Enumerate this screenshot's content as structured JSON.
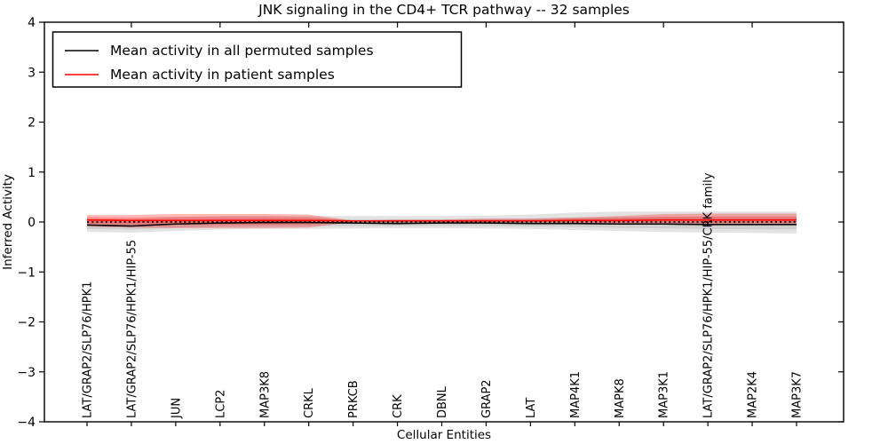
{
  "chart_data": {
    "type": "line",
    "title": "JNK signaling in the CD4+ TCR pathway -- 32 samples",
    "xlabel": "Cellular Entities",
    "ylabel": "Inferred Activity",
    "ylim": [
      -4,
      4
    ],
    "yticks": [
      4,
      3,
      2,
      1,
      0,
      -1,
      -2,
      -3,
      -4
    ],
    "ytick_labels": [
      "4",
      "3",
      "2",
      "1",
      "0",
      "−1",
      "−2",
      "−3",
      "−4"
    ],
    "grid": false,
    "legend_position": "upper left",
    "categories": [
      "LAT/GRAP2/SLP76/HPK1",
      "LAT/GRAP2/SLP76/HPK1/HIP-55",
      "JUN",
      "LCP2",
      "MAP3K8",
      "CRKL",
      "PRKCB",
      "CRK",
      "DBNL",
      "GRAP2",
      "LAT",
      "MAP4K1",
      "MAPK8",
      "MAP3K1",
      "LAT/GRAP2/SLP76/HPK1/HIP-55/CRK family",
      "MAP2K4",
      "MAP3K7"
    ],
    "series": [
      {
        "name": "Mean activity in all permuted samples",
        "color": "#000000",
        "style": "solid",
        "values": [
          -0.06,
          -0.08,
          -0.04,
          -0.02,
          -0.01,
          -0.01,
          -0.02,
          -0.03,
          -0.02,
          -0.02,
          -0.03,
          -0.03,
          -0.04,
          -0.04,
          -0.05,
          -0.05,
          -0.05
        ]
      },
      {
        "name": "Mean activity in patient samples",
        "color": "#ff0000",
        "style": "solid",
        "values": [
          0.04,
          0.03,
          0.03,
          0.03,
          0.03,
          0.03,
          0.02,
          0.02,
          0.02,
          0.02,
          0.02,
          0.03,
          0.03,
          0.04,
          0.04,
          0.04,
          0.04
        ]
      },
      {
        "name": "zero-baseline",
        "color": "#000000",
        "style": "dotted",
        "values": [
          0,
          0,
          0,
          0,
          0,
          0,
          0,
          0,
          0,
          0,
          0,
          0,
          0,
          0,
          0,
          0,
          0
        ]
      }
    ],
    "bands": [
      {
        "name": "permuted-samples-spread",
        "series": "Mean activity in all permuted samples",
        "color": "#000000",
        "opacity": 0.11,
        "upper": [
          0.07,
          0.06,
          0.1,
          0.12,
          0.13,
          0.12,
          0.12,
          0.12,
          0.12,
          0.13,
          0.15,
          0.19,
          0.21,
          0.21,
          0.21,
          0.21,
          0.21
        ],
        "lower": [
          -0.2,
          -0.21,
          -0.18,
          -0.15,
          -0.14,
          -0.14,
          -0.13,
          -0.12,
          -0.12,
          -0.13,
          -0.14,
          -0.16,
          -0.18,
          -0.2,
          -0.21,
          -0.22,
          -0.23
        ]
      },
      {
        "name": "patient-samples-spread",
        "series": "Mean activity in patient samples",
        "color": "#ff0000",
        "opacity": 0.28,
        "upper": [
          0.14,
          0.14,
          0.16,
          0.16,
          0.16,
          0.15,
          0.03,
          0.05,
          0.05,
          0.07,
          0.07,
          0.09,
          0.12,
          0.16,
          0.17,
          0.17,
          0.17
        ],
        "lower": [
          -0.09,
          -0.11,
          -0.12,
          -0.12,
          -0.12,
          -0.11,
          0.0,
          -0.01,
          -0.01,
          -0.01,
          -0.01,
          -0.02,
          -0.04,
          -0.05,
          -0.06,
          -0.06,
          -0.06
        ]
      }
    ]
  }
}
